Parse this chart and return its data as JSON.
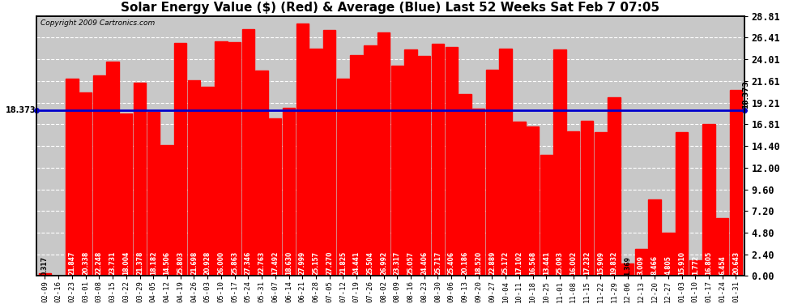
{
  "title": "Solar Energy Value ($) (Red) & Average (Blue) Last 52 Weeks Sat Feb 7 07:05",
  "copyright": "Copyright 2009 Cartronics.com",
  "average_line": 18.373,
  "bar_color": "#ff0000",
  "avg_line_color": "#0000cc",
  "background_color": "#ffffff",
  "plot_bg_color": "#c8c8c8",
  "ylim": [
    0.0,
    28.81
  ],
  "yticks_right": [
    0.0,
    2.4,
    4.8,
    7.2,
    9.6,
    12.0,
    14.4,
    16.81,
    19.21,
    21.61,
    24.01,
    26.41,
    28.81
  ],
  "categories": [
    "02-09",
    "02-16",
    "02-23",
    "03-01",
    "03-08",
    "03-15",
    "03-22",
    "03-29",
    "04-05",
    "04-12",
    "04-19",
    "04-26",
    "05-03",
    "05-10",
    "05-17",
    "05-24",
    "05-31",
    "06-07",
    "06-14",
    "06-21",
    "06-28",
    "07-05",
    "07-12",
    "07-19",
    "07-26",
    "08-02",
    "08-09",
    "08-16",
    "08-23",
    "08-30",
    "09-06",
    "09-13",
    "09-20",
    "09-27",
    "10-04",
    "10-11",
    "10-18",
    "10-25",
    "11-01",
    "11-08",
    "11-15",
    "11-22",
    "11-29",
    "12-06",
    "12-13",
    "12-20",
    "12-27",
    "01-03",
    "01-10",
    "01-17",
    "01-24",
    "01-31"
  ],
  "values": [
    0.317,
    0.0,
    21.847,
    20.338,
    22.248,
    23.731,
    18.004,
    21.378,
    18.182,
    14.506,
    25.803,
    21.698,
    20.928,
    26.0,
    25.863,
    27.346,
    22.763,
    17.492,
    18.63,
    27.999,
    25.157,
    27.27,
    21.825,
    24.441,
    25.504,
    26.992,
    23.317,
    25.057,
    24.406,
    25.717,
    25.406,
    20.186,
    18.52,
    22.889,
    25.172,
    17.102,
    16.568,
    13.441,
    25.093,
    16.002,
    17.232,
    15.909,
    19.832,
    1.369,
    3.009,
    8.466,
    4.805,
    15.91,
    1.772,
    16.805,
    6.454,
    20.643
  ],
  "label_fontsize": 5.5,
  "title_fontsize": 11,
  "copyright_fontsize": 6.5,
  "xtick_fontsize": 6.5,
  "ytick_fontsize": 8.5
}
